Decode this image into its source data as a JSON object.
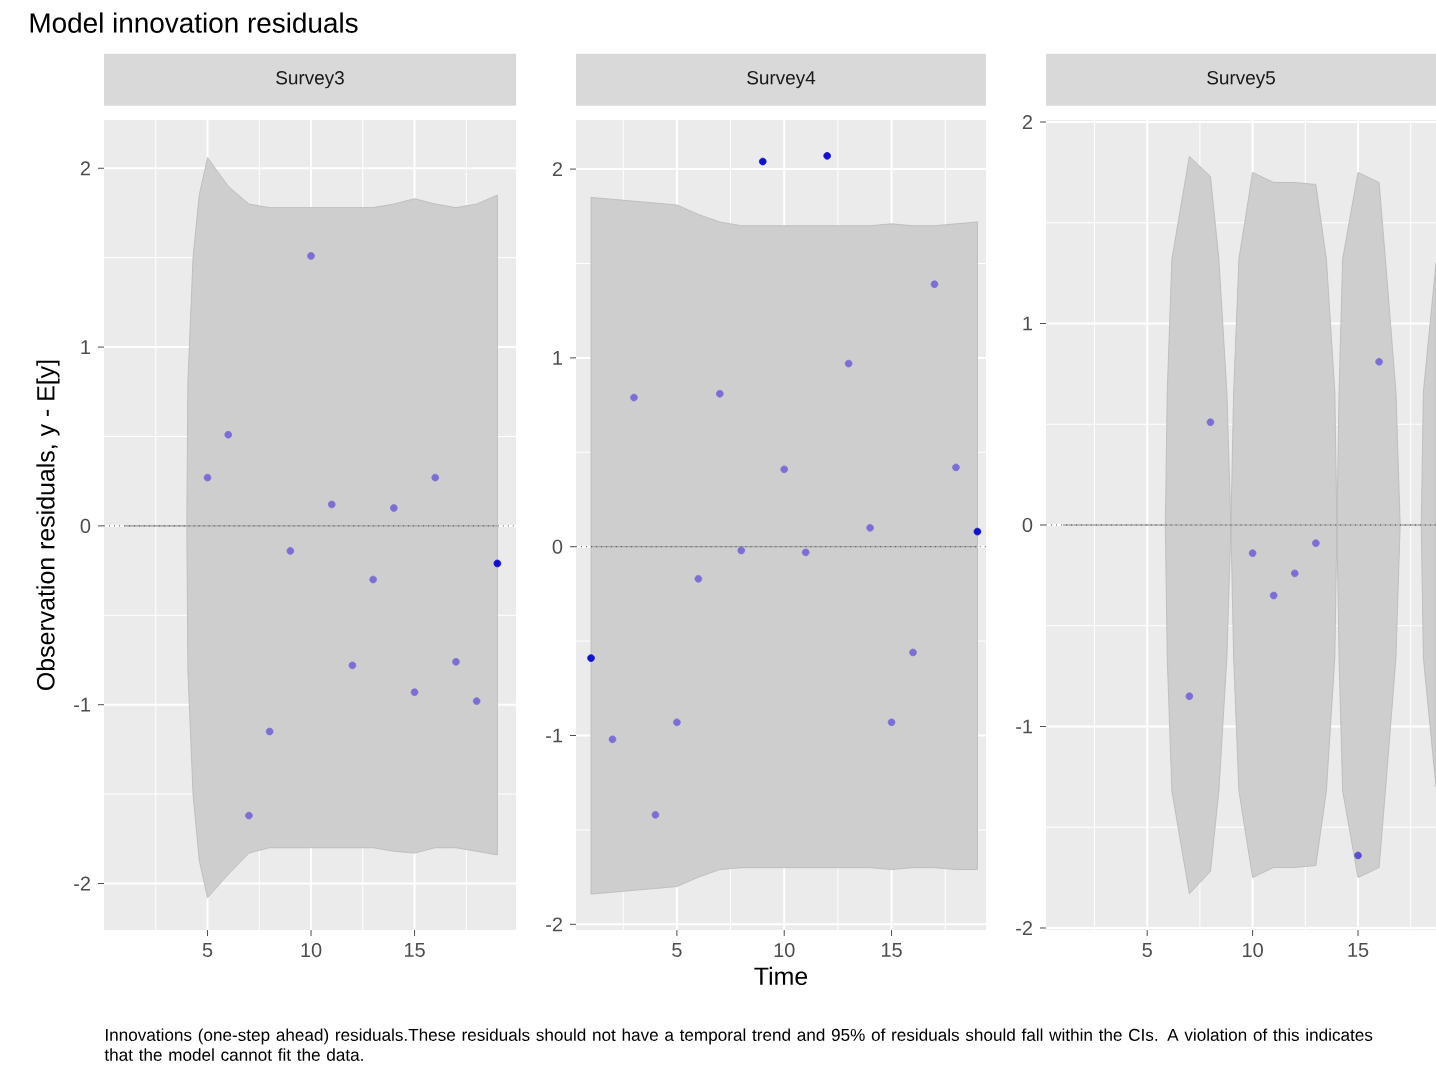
{
  "chart_data": [
    {
      "type": "scatter",
      "title": "Survey3",
      "ylabel": "Observation residuals, y - E[y]",
      "annotations": [
        "Model innovation residuals",
        "Innovations (one-step ahead) residuals.These residuals should not have a temporal trend and 95% of residuals should fall within the CIs. A violation of this indicates that the model cannot fit the data."
      ],
      "xlim": [
        0,
        19.9
      ],
      "ylim": [
        -2.26,
        2.27
      ],
      "xticks": [
        5,
        10,
        15
      ],
      "yticks": [
        -2,
        -1,
        0,
        1,
        2
      ],
      "grid": true,
      "ref_lines": [
        {
          "axis": "y",
          "value": 0,
          "line_style": "dotted"
        }
      ],
      "series": [
        {
          "type": "line",
          "color": "#a6a6a6",
          "x": [
            1,
            4,
            4.05,
            4.3,
            4.6,
            5,
            6,
            7,
            8,
            9,
            10,
            11,
            12,
            13,
            14,
            15,
            16,
            17,
            18,
            19
          ],
          "values": [
            0,
            0,
            0,
            0,
            0,
            0,
            0,
            0,
            0,
            0,
            0,
            0,
            0,
            0,
            0,
            0,
            0,
            0,
            0,
            0
          ],
          "upper": [
            0,
            0,
            0.8,
            1.5,
            1.85,
            2.06,
            1.9,
            1.8,
            1.78,
            1.78,
            1.78,
            1.78,
            1.78,
            1.78,
            1.8,
            1.83,
            1.8,
            1.78,
            1.8,
            1.85
          ],
          "lower": [
            0,
            0,
            -0.8,
            -1.5,
            -1.87,
            -2.08,
            -1.95,
            -1.83,
            -1.8,
            -1.8,
            -1.8,
            -1.8,
            -1.8,
            -1.8,
            -1.82,
            -1.83,
            -1.8,
            -1.8,
            -1.82,
            -1.84
          ]
        },
        {
          "marker": "circle",
          "x": [
            5,
            6,
            7,
            8,
            9,
            10,
            11,
            12,
            13,
            14,
            15,
            16,
            17,
            18,
            19
          ],
          "values": [
            0.27,
            0.51,
            -1.62,
            -1.15,
            -0.14,
            1.51,
            0.12,
            -0.78,
            -0.3,
            0.1,
            -0.93,
            0.27,
            -0.76,
            -0.98,
            -0.21
          ],
          "colors": [
            "#7b6fd6",
            "#7b6fd6",
            "#7b6fd6",
            "#7b6fd6",
            "#7b6fd6",
            "#7b6fd6",
            "#7b6fd6",
            "#7b6fd6",
            "#7b6fd6",
            "#7b6fd6",
            "#7b6fd6",
            "#7b6fd6",
            "#7b6fd6",
            "#7b6fd6",
            "#1010d0"
          ]
        }
      ]
    },
    {
      "type": "scatter",
      "title": "Survey4",
      "xlabel": "Time",
      "xlim": [
        0.3,
        19.4
      ],
      "ylim": [
        -2.03,
        2.26
      ],
      "xticks": [
        5,
        10,
        15
      ],
      "yticks": [
        -2,
        -1,
        0,
        1,
        2
      ],
      "grid": true,
      "ref_lines": [
        {
          "axis": "y",
          "value": 0,
          "line_style": "dotted"
        }
      ],
      "series": [
        {
          "type": "line",
          "color": "#a6a6a6",
          "x": [
            1,
            2,
            3,
            4,
            5,
            6,
            7,
            8,
            9,
            10,
            11,
            12,
            13,
            14,
            15,
            16,
            17,
            18,
            19
          ],
          "values": [
            0,
            0,
            0,
            0,
            0,
            0,
            0,
            0,
            0,
            0,
            0,
            0,
            0,
            0,
            0,
            0,
            0,
            0,
            0
          ],
          "upper": [
            1.85,
            1.84,
            1.83,
            1.82,
            1.81,
            1.76,
            1.72,
            1.7,
            1.7,
            1.7,
            1.7,
            1.7,
            1.7,
            1.7,
            1.71,
            1.7,
            1.7,
            1.71,
            1.72
          ],
          "lower": [
            -1.84,
            -1.83,
            -1.82,
            -1.81,
            -1.8,
            -1.75,
            -1.71,
            -1.7,
            -1.7,
            -1.7,
            -1.7,
            -1.7,
            -1.7,
            -1.7,
            -1.71,
            -1.7,
            -1.7,
            -1.71,
            -1.71
          ]
        },
        {
          "marker": "circle",
          "x": [
            1,
            2,
            3,
            4,
            5,
            6,
            7,
            8,
            9,
            10,
            11,
            12,
            13,
            14,
            15,
            16,
            17,
            18,
            19
          ],
          "values": [
            -0.59,
            -1.02,
            0.79,
            -1.42,
            -0.93,
            -0.17,
            0.81,
            -0.02,
            2.04,
            0.41,
            -0.03,
            2.07,
            0.97,
            0.1,
            -0.93,
            -0.56,
            1.39,
            0.42,
            0.08
          ],
          "colors": [
            "#1010d0",
            "#7b6fd6",
            "#7b6fd6",
            "#7b6fd6",
            "#7b6fd6",
            "#7b6fd6",
            "#7b6fd6",
            "#7b6fd6",
            "#1010d0",
            "#7b6fd6",
            "#7b6fd6",
            "#1010d0",
            "#7b6fd6",
            "#7b6fd6",
            "#7b6fd6",
            "#7b6fd6",
            "#7b6fd6",
            "#7b6fd6",
            "#1010d0"
          ]
        }
      ]
    },
    {
      "type": "scatter",
      "title": "Survey5",
      "xlim": [
        0.2,
        18.7
      ],
      "ylim": [
        -2.01,
        2.01
      ],
      "xticks": [
        5,
        10,
        15
      ],
      "yticks": [
        -2,
        -1,
        0,
        1,
        2
      ],
      "grid": true,
      "ref_lines": [
        {
          "axis": "y",
          "value": 0,
          "line_style": "dotted"
        }
      ],
      "series": [
        {
          "type": "line",
          "color": "#a6a6a6",
          "x": [
            1,
            5.86,
            5.95,
            6.17,
            7,
            8,
            8.4,
            8.78,
            8.97,
            9.1,
            9.35,
            10,
            11,
            12,
            13,
            13.5,
            13.9,
            14,
            14.1,
            14.27,
            15,
            16,
            16.3,
            16.8,
            17,
            18,
            18.1,
            18.7
          ],
          "values": [
            0,
            0,
            0,
            0,
            0,
            0,
            0,
            0,
            0,
            0,
            0,
            0,
            0,
            0,
            0,
            0,
            0,
            0,
            0,
            0,
            0,
            0,
            0,
            0,
            0,
            0,
            0,
            0
          ],
          "upper": [
            0,
            0,
            0.66,
            1.32,
            1.83,
            1.73,
            1.32,
            0.66,
            0,
            0.66,
            1.32,
            1.75,
            1.7,
            1.7,
            1.69,
            1.32,
            0.66,
            0,
            0.66,
            1.32,
            1.75,
            1.7,
            1.32,
            0.66,
            0,
            0,
            0.66,
            1.3
          ],
          "lower": [
            0,
            0,
            -0.66,
            -1.32,
            -1.83,
            -1.72,
            -1.32,
            -0.66,
            0,
            -0.66,
            -1.32,
            -1.75,
            -1.7,
            -1.7,
            -1.69,
            -1.32,
            -0.66,
            0,
            -0.66,
            -1.32,
            -1.75,
            -1.7,
            -1.32,
            -0.66,
            0,
            0,
            -0.66,
            -1.3
          ]
        },
        {
          "marker": "circle",
          "x": [
            7,
            8,
            10,
            11,
            12,
            13,
            15,
            16
          ],
          "values": [
            -0.85,
            0.51,
            -0.14,
            -0.35,
            -0.24,
            -0.09,
            -1.64,
            0.81
          ],
          "colors": [
            "#7b6fd6",
            "#7b6fd6",
            "#7b6fd6",
            "#7b6fd6",
            "#7b6fd6",
            "#7b6fd6",
            "#5a4fd0",
            "#7b6fd6"
          ]
        }
      ]
    }
  ]
}
